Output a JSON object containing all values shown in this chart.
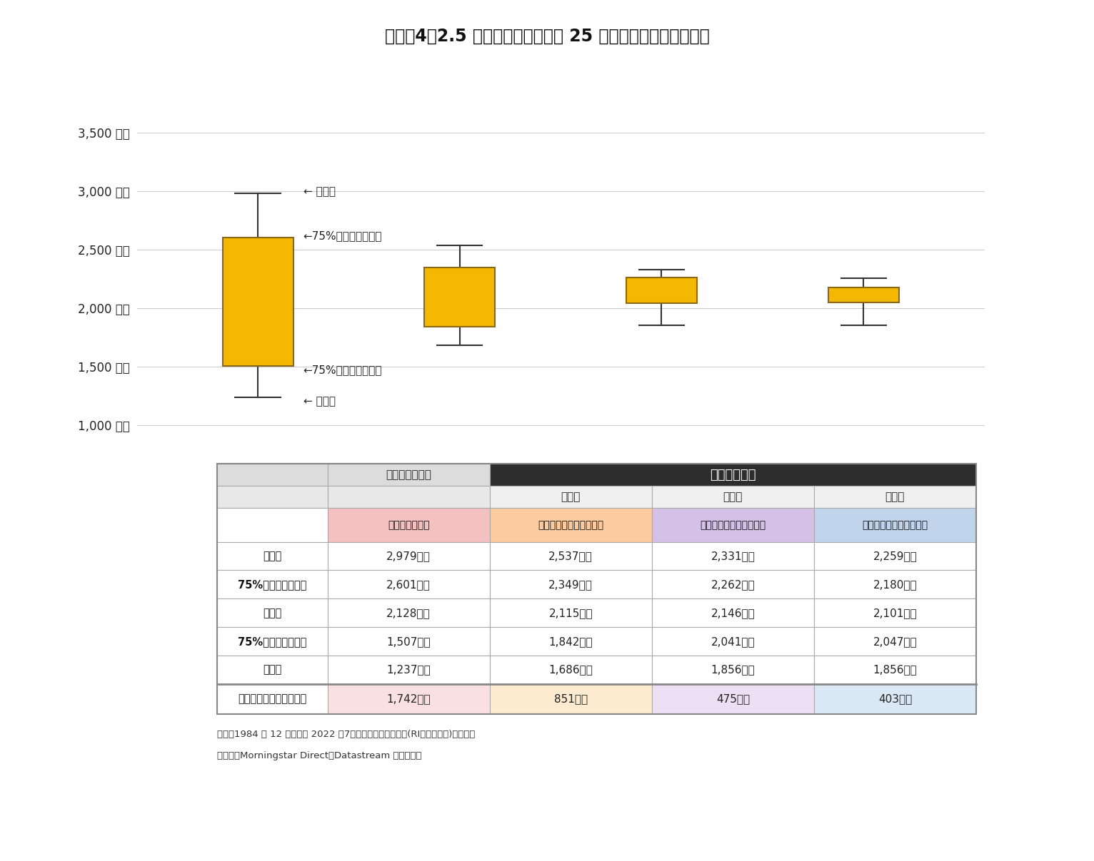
{
  "title": "》図表４「2.5万円の積立投賄での 25 年後の時価残高の分布図",
  "title_raw": "【図表4】2.5 万円の積立投資での 25 年後の時価残高の分布図",
  "background_color": "#ffffff",
  "y_ticks": [
    1000,
    1500,
    2000,
    2500,
    3000,
    3500
  ],
  "y_tick_labels": [
    "1,000 万円",
    "1,500 万円",
    "2,000 万円",
    "2,500 万円",
    "3,000 万円",
    "3,500 万円"
  ],
  "ylim": [
    850,
    3750
  ],
  "boxes": [
    {
      "x": 0,
      "q1": 1507,
      "q3": 2601,
      "min": 1237,
      "max": 2979
    },
    {
      "x": 1,
      "q1": 1842,
      "q3": 2349,
      "min": 1686,
      "max": 2537
    },
    {
      "x": 2,
      "q1": 2041,
      "q3": 2262,
      "min": 1856,
      "max": 2331
    },
    {
      "x": 3,
      "q1": 2047,
      "q3": 2180,
      "min": 1856,
      "max": 2259
    }
  ],
  "box_color": "#F5B800",
  "box_edge_color": "#8B6914",
  "box_width": 0.35,
  "whisker_color": "#333333",
  "grid_color": "#cccccc",
  "ann_max": "← 最大値",
  "ann_q3": "←75%範囲内の最大値",
  "ann_q1": "←75%範囲内の最小値",
  "ann_min": "← 最小値",
  "table_sub_labels": [
    "運用継続をする",
    "半分を元本確保型にする",
    "全額をバランス型にする",
    "全額を元本確保型にする"
  ],
  "table_abc": [
    "（ａ）",
    "（ｂ）",
    "（ｃ）"
  ],
  "table_row_labels": [
    "最大値",
    "75%範囲内の最大値",
    "平均値",
    "75%範囲内の最小値",
    "最小値"
  ],
  "table_diff_label": "最大値と最小値との差額",
  "table_data": [
    [
      "2,979万円",
      "2,537万円",
      "2,331万円",
      "2,259万円"
    ],
    [
      "2,601万円",
      "2,349万円",
      "2,262万円",
      "2,180万円"
    ],
    [
      "2,128万円",
      "2,115万円",
      "2,146万円",
      "2,101万円"
    ],
    [
      "1,507万円",
      "1,842万円",
      "2,041万円",
      "2,047万円"
    ],
    [
      "1,237万円",
      "1,686万円",
      "1,856万円",
      "1,856万円"
    ]
  ],
  "table_diff_data": [
    "1,742万円",
    "851万円",
    "475万円",
    "403万円"
  ],
  "header_no_migrate": "移行しない場合",
  "header_migrate": "移行する場合",
  "sub_header_colors": [
    "#F5C0C0",
    "#FCCBA0",
    "#D5C0E8",
    "#C0D5EC"
  ],
  "diff_row_colors": [
    "#FAE0E0",
    "#FDEBD0",
    "#EDE0F5",
    "#DAE8F5"
  ],
  "note1": "（注）1984 年 12 月末から 2022 年7月末までの月次データ(RI・円ベース)を使用。",
  "note2": "（資料）Morningstar Direct、Datastream から作成。"
}
